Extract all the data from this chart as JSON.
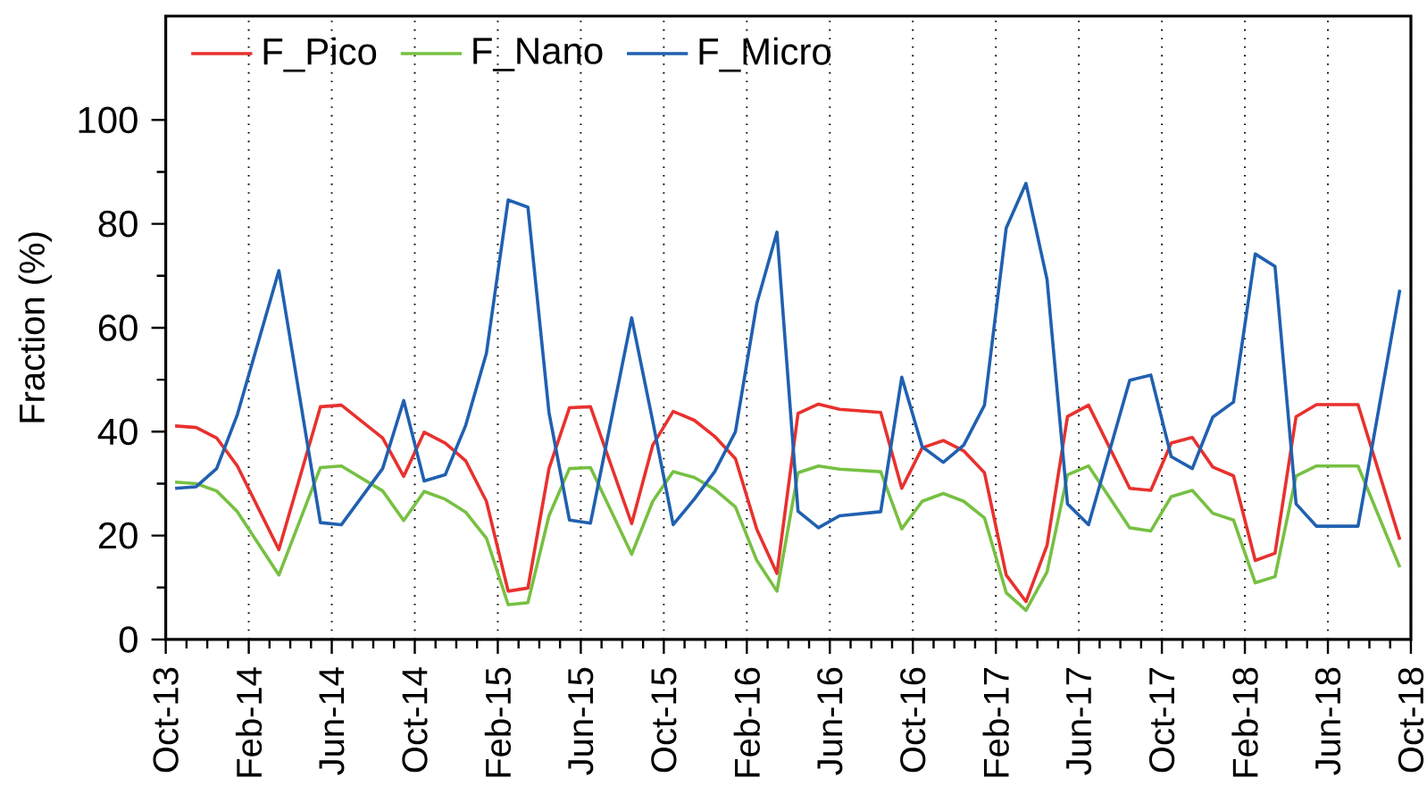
{
  "chart_data": {
    "type": "line",
    "ylabel": "Fraction (%)",
    "x": [
      "2013-10-15",
      "2013-11-15",
      "2013-12-15",
      "2014-01-15",
      "2014-03-15",
      "2014-05-15",
      "2014-06-15",
      "2014-08-15",
      "2014-09-15",
      "2014-10-15",
      "2014-11-15",
      "2014-12-15",
      "2015-01-15",
      "2015-02-15",
      "2015-03-15",
      "2015-04-15",
      "2015-05-15",
      "2015-06-15",
      "2015-08-15",
      "2015-09-15",
      "2015-10-15",
      "2015-11-15",
      "2015-12-15",
      "2016-01-15",
      "2016-02-15",
      "2016-03-15",
      "2016-04-15",
      "2016-05-15",
      "2016-06-15",
      "2016-08-15",
      "2016-09-15",
      "2016-10-15",
      "2016-11-15",
      "2016-12-15",
      "2017-01-15",
      "2017-02-15",
      "2017-03-15",
      "2017-04-15",
      "2017-05-15",
      "2017-06-15",
      "2017-08-15",
      "2017-09-15",
      "2017-10-15",
      "2017-11-15",
      "2017-12-15",
      "2018-01-15",
      "2018-02-15",
      "2018-03-15",
      "2018-04-15",
      "2018-05-15",
      "2018-07-15",
      "2018-09-15"
    ],
    "series": [
      {
        "name": "F_Pico",
        "color": "#e8312e",
        "values": [
          41.1,
          40.8,
          38.8,
          33.4,
          17.3,
          44.8,
          45.1,
          38.8,
          31.4,
          39.9,
          37.8,
          34.4,
          26.6,
          9.3,
          9.9,
          32.9,
          44.6,
          44.8,
          22.3,
          37.4,
          43.9,
          42.2,
          39.1,
          34.8,
          21.2,
          12.7,
          43.5,
          45.3,
          44.3,
          43.7,
          29.1,
          36.9,
          38.3,
          36.3,
          32.1,
          12.4,
          7.3,
          18.1,
          42.9,
          45.1,
          29.1,
          28.7,
          37.8,
          38.9,
          33.2,
          31.5,
          15.2,
          16.6,
          42.9,
          45.2,
          45.2,
          19.2
        ]
      },
      {
        "name": "F_Nano",
        "color": "#77c043",
        "values": [
          30.3,
          30.0,
          28.6,
          24.6,
          12.4,
          33.1,
          33.4,
          28.6,
          22.9,
          28.5,
          27.0,
          24.5,
          19.5,
          6.7,
          7.1,
          23.8,
          32.9,
          33.1,
          16.4,
          26.6,
          32.3,
          31.2,
          28.9,
          25.5,
          15.2,
          9.3,
          32.1,
          33.4,
          32.8,
          32.3,
          21.3,
          26.6,
          28.1,
          26.6,
          23.4,
          9.0,
          5.6,
          13.0,
          31.7,
          33.4,
          21.5,
          20.9,
          27.5,
          28.7,
          24.3,
          23.0,
          10.9,
          12.1,
          31.5,
          33.4,
          33.4,
          13.9
        ]
      },
      {
        "name": "F_Micro",
        "color": "#2060b0",
        "values": [
          29.1,
          29.4,
          32.9,
          43.3,
          71.0,
          22.5,
          22.1,
          32.9,
          46.0,
          30.5,
          31.7,
          41.2,
          55.1,
          84.6,
          83.2,
          43.7,
          23.0,
          22.4,
          61.9,
          42.0,
          22.1,
          27.0,
          32.3,
          40.0,
          64.7,
          78.4,
          24.7,
          21.5,
          23.8,
          24.6,
          50.5,
          37.1,
          34.1,
          37.4,
          45.1,
          79.2,
          87.8,
          69.3,
          26.1,
          22.1,
          49.9,
          50.9,
          35.2,
          32.9,
          42.8,
          45.7,
          74.2,
          71.8,
          26.1,
          21.8,
          21.8,
          67.3
        ]
      }
    ],
    "xlim": [
      "2013-10",
      "2018-10"
    ],
    "xticks": [
      {
        "value": "2013-10",
        "label": "Oct-13"
      },
      {
        "value": "2014-02",
        "label": "Feb-14"
      },
      {
        "value": "2014-06",
        "label": "Jun-14"
      },
      {
        "value": "2014-10",
        "label": "Oct-14"
      },
      {
        "value": "2015-02",
        "label": "Feb-15"
      },
      {
        "value": "2015-06",
        "label": "Jun-15"
      },
      {
        "value": "2015-10",
        "label": "Oct-15"
      },
      {
        "value": "2016-02",
        "label": "Feb-16"
      },
      {
        "value": "2016-06",
        "label": "Jun-16"
      },
      {
        "value": "2016-10",
        "label": "Oct-16"
      },
      {
        "value": "2017-02",
        "label": "Feb-17"
      },
      {
        "value": "2017-06",
        "label": "Jun-17"
      },
      {
        "value": "2017-10",
        "label": "Oct-17"
      },
      {
        "value": "2018-02",
        "label": "Feb-18"
      },
      {
        "value": "2018-06",
        "label": "Jun-18"
      },
      {
        "value": "2018-10",
        "label": "Oct-18"
      }
    ],
    "ylim": [
      0,
      120
    ],
    "yticks": [
      0,
      20,
      40,
      60,
      80,
      100
    ],
    "grid": "x",
    "legend": "top left",
    "marker": "none",
    "line_style": "solid"
  }
}
